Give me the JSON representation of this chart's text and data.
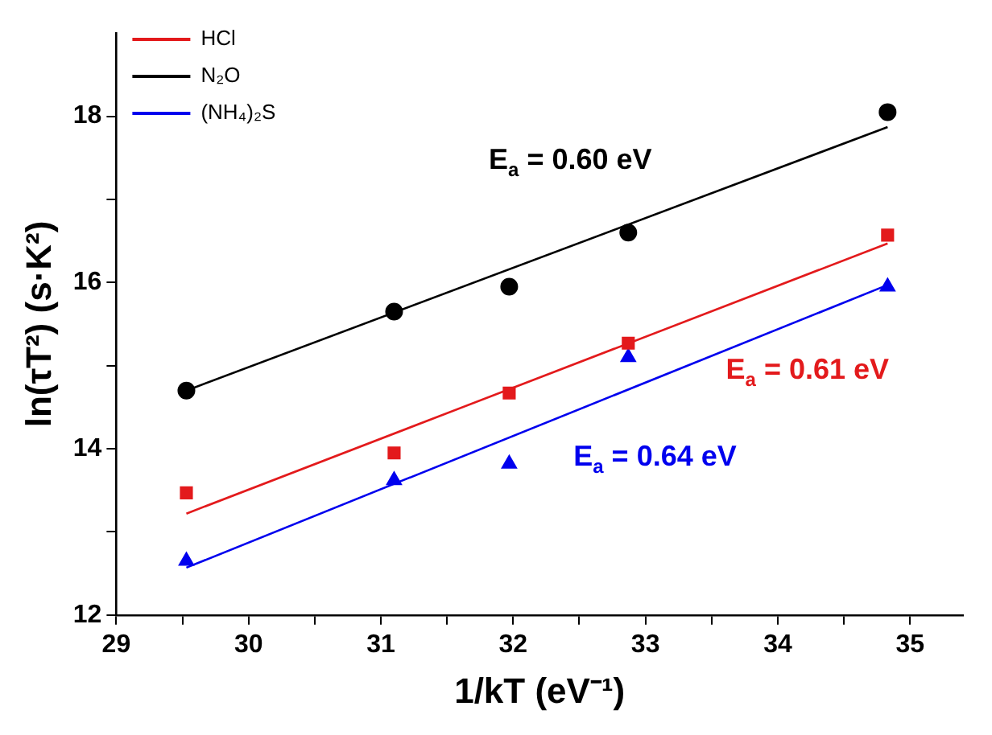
{
  "chart_data": {
    "type": "scatter",
    "xlabel": "1/kT (eV⁻¹)",
    "ylabel": "ln(τT²) (s·K²)",
    "xlim": [
      29,
      35.4
    ],
    "ylim": [
      12,
      19
    ],
    "xticks": [
      29,
      {
        "value": 29.5,
        "label": null
      },
      30,
      {
        "value": 30.5,
        "label": null
      },
      31,
      {
        "value": 31.5,
        "label": null
      },
      32,
      {
        "value": 32.5,
        "label": null
      },
      33,
      {
        "value": 33.5,
        "label": null
      },
      34,
      {
        "value": 34.5,
        "label": null
      },
      35
    ],
    "yticks": [
      12,
      {
        "value": 13,
        "label": null
      },
      14,
      {
        "value": 15,
        "label": null
      },
      16,
      {
        "value": 17,
        "label": null
      },
      18
    ],
    "grid": false,
    "legend": "top left",
    "series": [
      {
        "name": "HCl",
        "marker": "square",
        "color": "#e31a1c",
        "x": [
          29.53,
          31.1,
          31.97,
          32.87,
          34.83
        ],
        "values": [
          13.47,
          13.95,
          14.67,
          15.27,
          16.57
        ]
      },
      {
        "name": "N₂O",
        "marker": "circle",
        "color": "#000000",
        "x": [
          29.53,
          31.1,
          31.97,
          32.87,
          34.83
        ],
        "values": [
          14.7,
          15.65,
          15.95,
          16.6,
          18.05
        ]
      },
      {
        "name": "(NH₄)₂S",
        "marker": "triangle",
        "color": "#0000ee",
        "x": [
          29.53,
          31.1,
          31.97,
          32.87,
          34.83
        ],
        "values": [
          12.65,
          13.62,
          13.82,
          15.1,
          15.95
        ]
      },
      {
        "type": "line",
        "marker": "none",
        "color": "#e31a1c",
        "x": [
          29.53,
          34.83
        ],
        "values": [
          13.22,
          16.47
        ]
      },
      {
        "type": "line",
        "marker": "none",
        "color": "#000000",
        "x": [
          29.53,
          34.83
        ],
        "values": [
          14.7,
          17.87
        ]
      },
      {
        "type": "line",
        "marker": "none",
        "color": "#0000ee",
        "x": [
          29.53,
          34.83
        ],
        "values": [
          12.57,
          15.97
        ]
      }
    ],
    "annotations": [
      "E$_{a}$ = 0.61 eV",
      "E$_{a}$ = 0.60 eV",
      "E$_{a}$ = 0.64 eV"
    ]
  }
}
